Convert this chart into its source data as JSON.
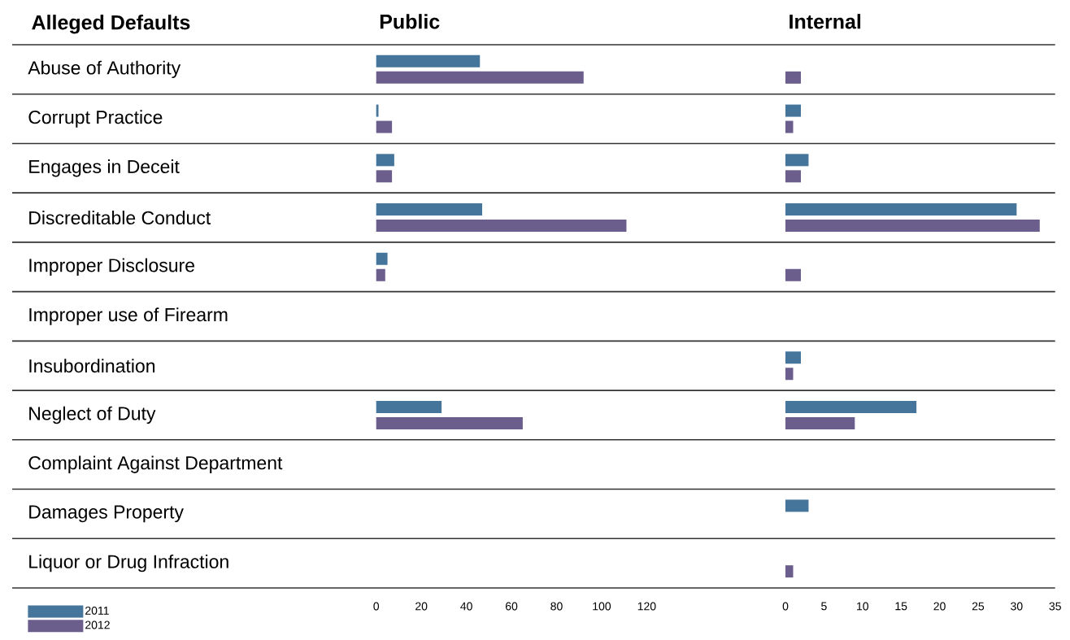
{
  "chart_data": [
    {
      "type": "bar",
      "orientation": "horizontal",
      "title": "Public",
      "ylabel": "Alleged Defaults",
      "categories": [
        "Abuse of Authority",
        "Corrupt Practice",
        "Engages in Deceit",
        "Discreditable Conduct",
        "Improper Disclosure",
        "Improper use of Firearm",
        "Insubordination",
        "Neglect of Duty",
        "Complaint Against Department",
        "Damages Property",
        "Liquor or Drug Infraction"
      ],
      "series": [
        {
          "name": "2011",
          "color": "#46759c",
          "values": [
            46,
            1,
            8,
            47,
            5,
            0,
            0,
            29,
            0,
            0,
            0
          ]
        },
        {
          "name": "2012",
          "color": "#6b5e8d",
          "values": [
            92,
            7,
            7,
            111,
            4,
            0,
            0,
            65,
            0,
            0,
            0
          ]
        }
      ],
      "xlim": [
        0,
        120
      ],
      "xticks": [
        0,
        20,
        40,
        60,
        80,
        100,
        120
      ],
      "legend": "bottom left"
    },
    {
      "type": "bar",
      "orientation": "horizontal",
      "title": "Internal",
      "categories": [
        null,
        null,
        null,
        null,
        null,
        null,
        null,
        null,
        null,
        null,
        null
      ],
      "series": [
        {
          "color": "#46759c",
          "values": [
            0,
            2,
            3,
            30,
            0,
            0,
            2,
            17,
            0,
            3,
            0
          ]
        },
        {
          "color": "#6b5e8d",
          "values": [
            2,
            1,
            2,
            33,
            2,
            0,
            1,
            9,
            0,
            0,
            1
          ]
        }
      ],
      "xlim": [
        0,
        35
      ],
      "xticks": [
        0,
        5,
        10,
        15,
        20,
        25,
        30,
        35
      ],
      "tick_labels": "x"
    }
  ]
}
